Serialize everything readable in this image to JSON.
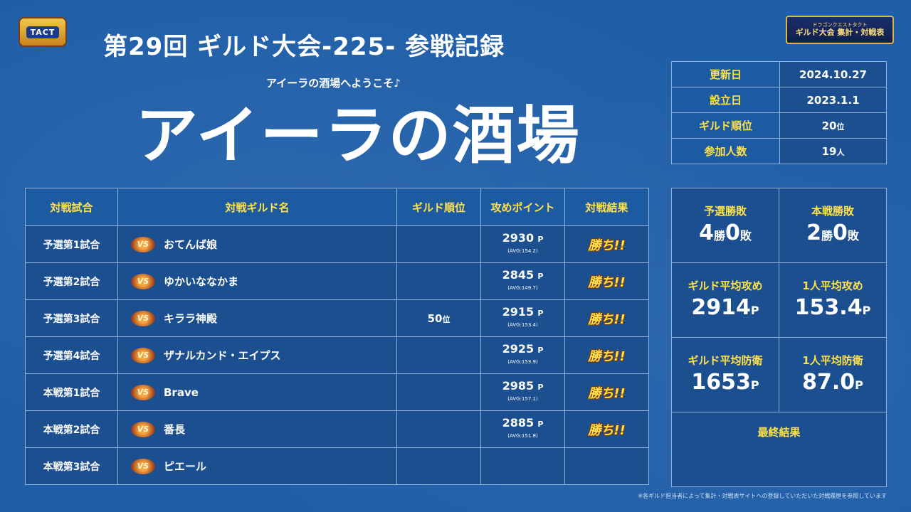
{
  "header": {
    "title": "第29回  ギルド大会-225-  参戦記録",
    "subtitle": "アイーラの酒場へようこそ♪",
    "guild_name": "アイーラの酒場",
    "logo_left_text": "TACT",
    "logo_right_small": "ドラゴンクエストタクト",
    "logo_right_main": "ギルド大会 集計・対戦表"
  },
  "info": {
    "updated_label": "更新日",
    "updated_value": "2024.10.27",
    "founded_label": "設立日",
    "founded_value": "2023.1.1",
    "rank_label": "ギルド順位",
    "rank_value": "20",
    "rank_unit": "位",
    "members_label": "参加人数",
    "members_value": "19",
    "members_unit": "人"
  },
  "table": {
    "headers": [
      "対戦試合",
      "対戦ギルド名",
      "ギルド順位",
      "攻めポイント",
      "対戦結果"
    ],
    "vs_label": "VS",
    "rows": [
      {
        "round": "予選第1試合",
        "opponent": "おてんば娘",
        "rank": "",
        "rank_unit": "",
        "points": "2930",
        "unit": "P",
        "avg": "(AVG:154.2)",
        "result": "勝ち!!"
      },
      {
        "round": "予選第2試合",
        "opponent": "ゆかいななかま",
        "rank": "",
        "rank_unit": "",
        "points": "2845",
        "unit": "P",
        "avg": "(AVG:149.7)",
        "result": "勝ち!!"
      },
      {
        "round": "予選第3試合",
        "opponent": "キララ神殿",
        "rank": "50",
        "rank_unit": "位",
        "points": "2915",
        "unit": "P",
        "avg": "(AVG:153.4)",
        "result": "勝ち!!"
      },
      {
        "round": "予選第4試合",
        "opponent": "ザナルカンド・エイプス",
        "rank": "",
        "rank_unit": "",
        "points": "2925",
        "unit": "P",
        "avg": "(AVG:153.9)",
        "result": "勝ち!!"
      },
      {
        "round": "本戦第1試合",
        "opponent": "Brave",
        "rank": "",
        "rank_unit": "",
        "points": "2985",
        "unit": "P",
        "avg": "(AVG:157.1)",
        "result": "勝ち!!"
      },
      {
        "round": "本戦第2試合",
        "opponent": "番長",
        "rank": "",
        "rank_unit": "",
        "points": "2885",
        "unit": "P",
        "avg": "(AVG:151.8)",
        "result": "勝ち!!"
      },
      {
        "round": "本戦第3試合",
        "opponent": "ピエール",
        "rank": "",
        "rank_unit": "",
        "points": "",
        "unit": "",
        "avg": "",
        "result": ""
      }
    ]
  },
  "stats": {
    "prelim_label": "予選勝敗",
    "prelim_win": "4",
    "prelim_loss": "0",
    "main_label": "本戦勝敗",
    "main_win": "2",
    "main_loss": "0",
    "win_unit": "勝",
    "loss_unit": "敗",
    "guild_atk_label": "ギルド平均攻め",
    "guild_atk_value": "2914",
    "person_atk_label": "1人平均攻め",
    "person_atk_value": "153.4",
    "guild_def_label": "ギルド平均防衛",
    "guild_def_value": "1653",
    "person_def_label": "1人平均防衛",
    "person_def_value": "87.0",
    "p_unit": "P",
    "final_label": "最終結果"
  },
  "footnote": "※各ギルド担当者によって集計・対戦表サイトへの登録していただいた対戦履歴を参照しています"
}
